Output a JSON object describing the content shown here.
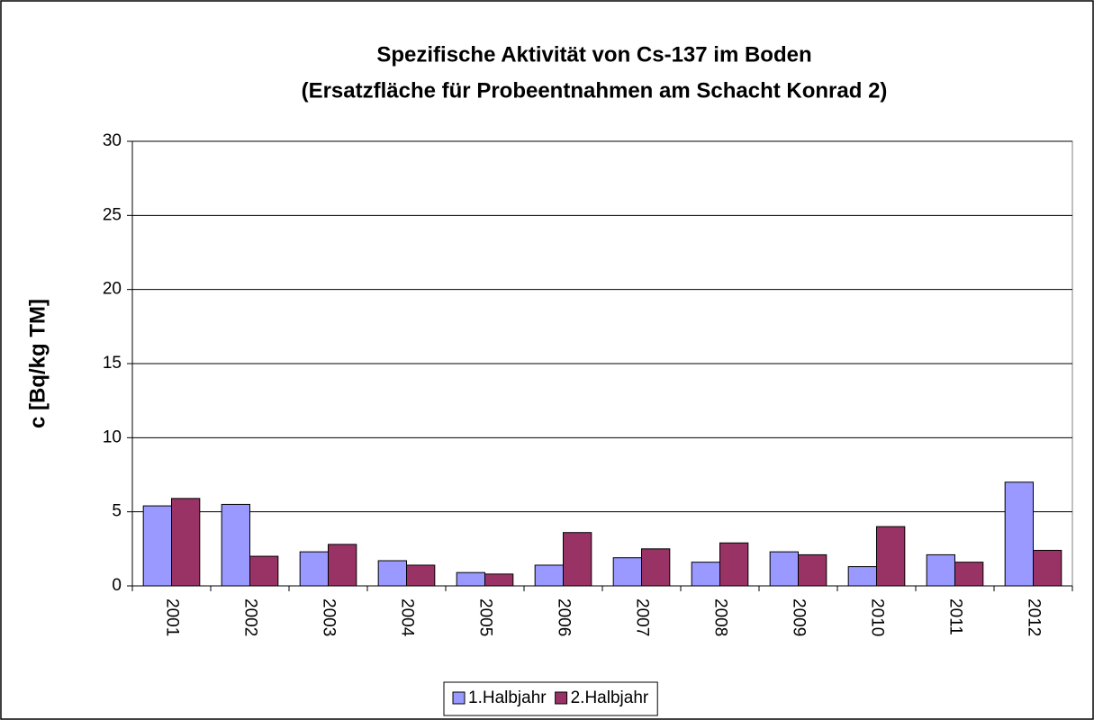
{
  "chart_data": {
    "type": "bar",
    "title": "Spezifische Aktivität von Cs-137 im Boden",
    "subtitle": "(Ersatzfläche für Probeentnahmen am Schacht Konrad 2)",
    "y_label": "c [Bq/kg TM]",
    "categories": [
      "2001",
      "2002",
      "2003",
      "2004",
      "2005",
      "2006",
      "2007",
      "2008",
      "2009",
      "2010",
      "2011",
      "2012"
    ],
    "series": [
      {
        "name": "1.Halbjahr",
        "color": "#9999ff",
        "values": [
          5.4,
          5.5,
          2.3,
          1.7,
          0.9,
          1.4,
          1.9,
          1.6,
          2.3,
          1.3,
          2.1,
          7.0
        ]
      },
      {
        "name": "2.Halbjahr",
        "color": "#993366",
        "values": [
          5.9,
          2.0,
          2.8,
          1.4,
          0.8,
          3.6,
          2.5,
          2.9,
          2.1,
          4.0,
          1.6,
          2.4
        ]
      }
    ],
    "ylim": [
      0,
      30
    ],
    "yticks": [
      0,
      5,
      10,
      15,
      20,
      25,
      30
    ],
    "grid": true,
    "legend": "bottom"
  }
}
